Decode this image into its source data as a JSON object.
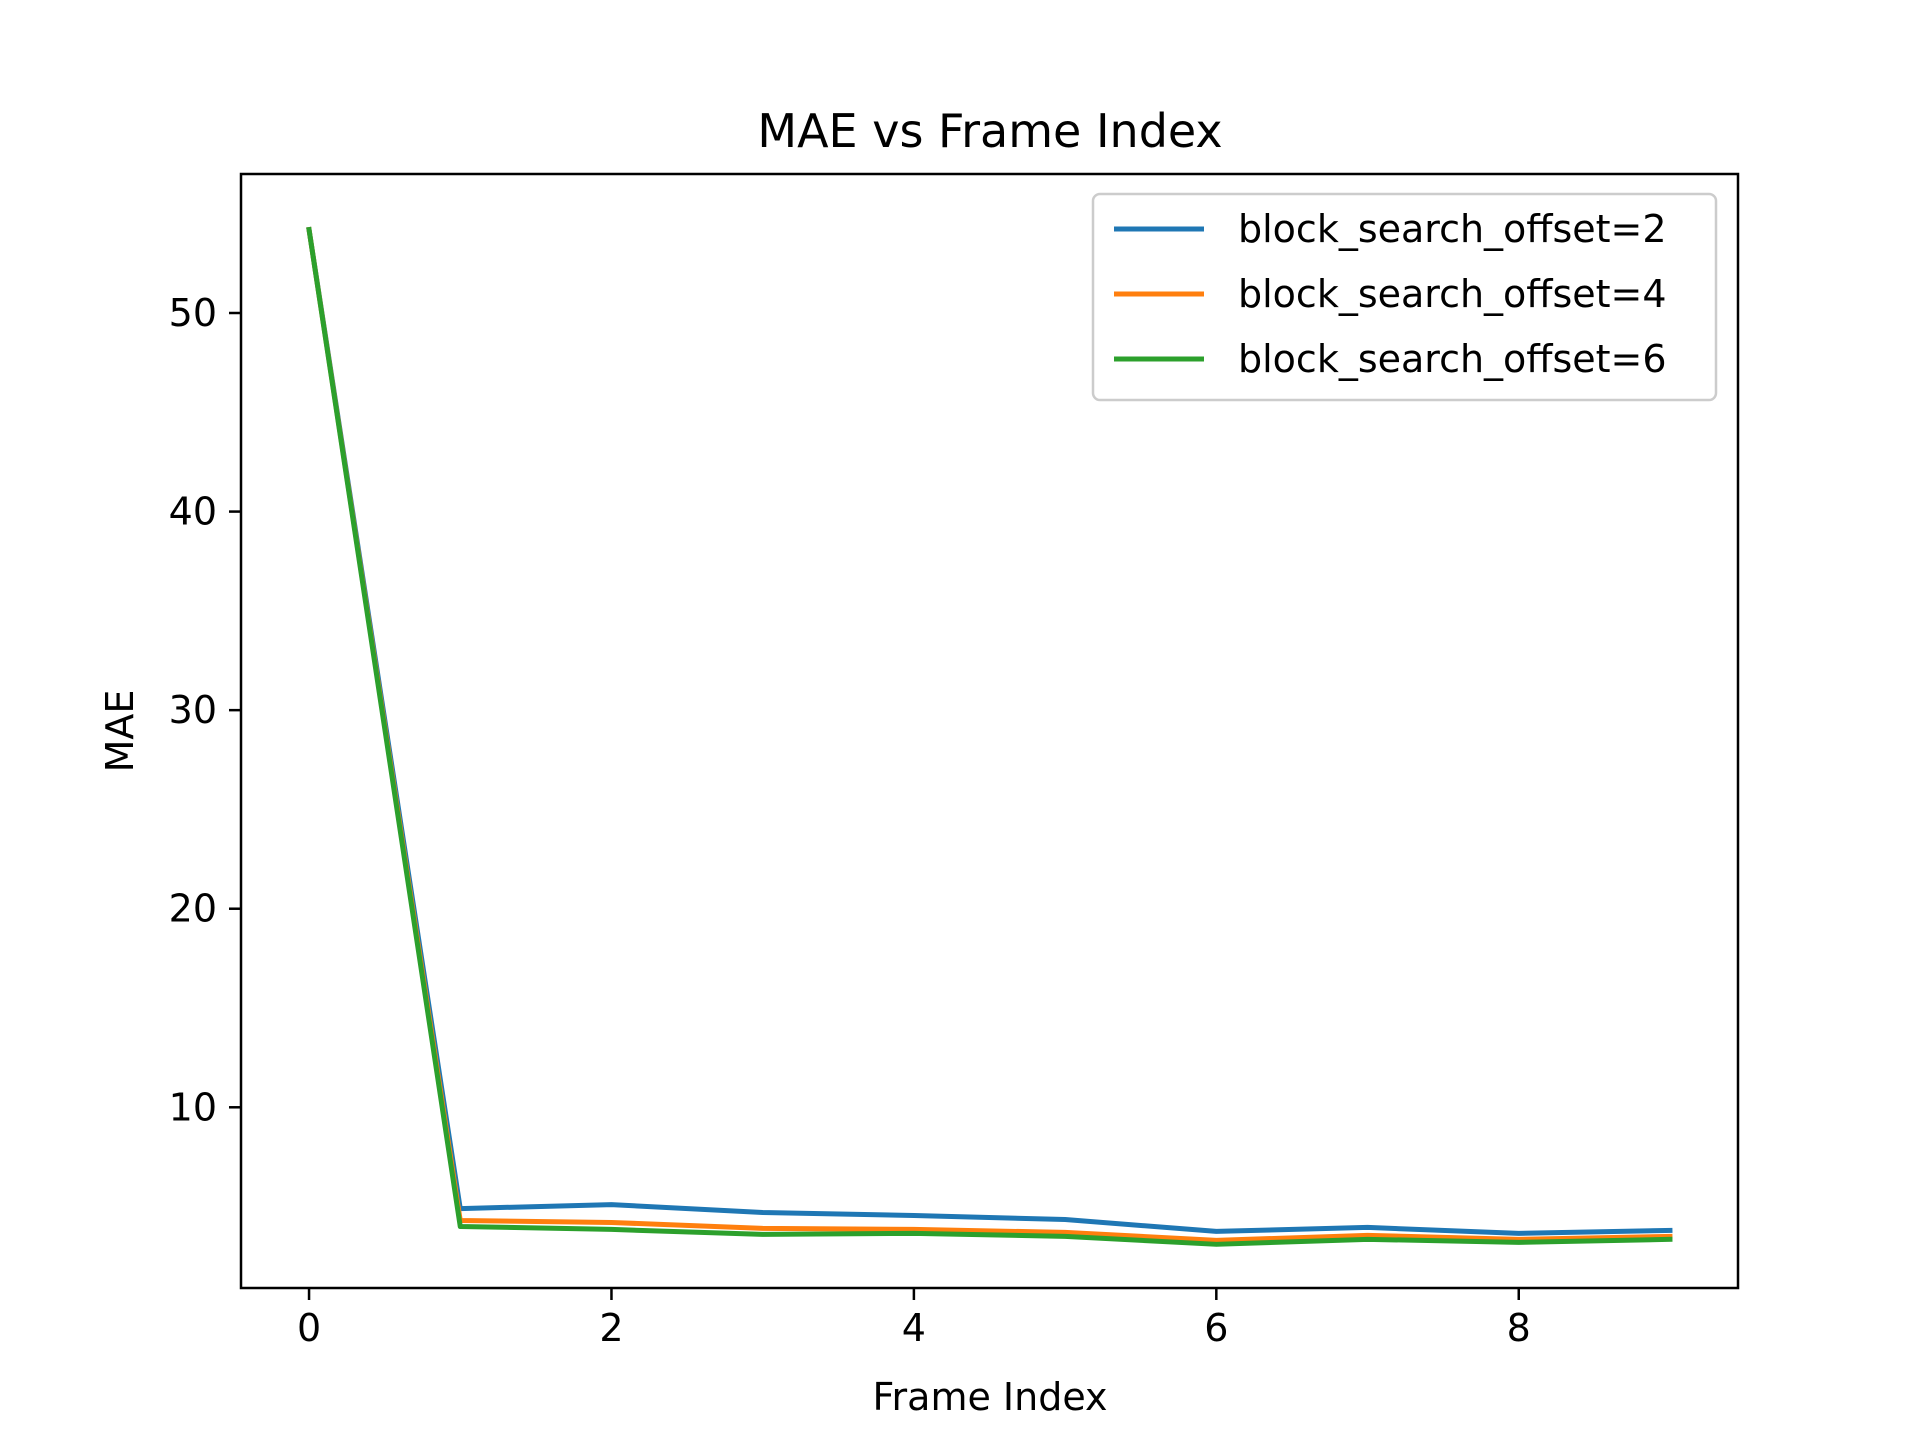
{
  "chart_data": {
    "type": "line",
    "title": "MAE vs Frame Index",
    "xlabel": "Frame Index",
    "ylabel": "MAE",
    "x": [
      0,
      1,
      2,
      3,
      4,
      5,
      6,
      7,
      8,
      9
    ],
    "xticks": [
      0,
      2,
      4,
      6,
      8
    ],
    "yticks": [
      10,
      20,
      30,
      40,
      50
    ],
    "xlim": [
      -0.45,
      9.45
    ],
    "ylim": [
      0.9,
      57.0
    ],
    "grid": false,
    "legend_position": "top-right",
    "series": [
      {
        "name": "block_search_offset=2",
        "color": "#1f77b4",
        "values": [
          54.2,
          4.9,
          5.1,
          4.7,
          4.55,
          4.35,
          3.75,
          3.95,
          3.65,
          3.8
        ]
      },
      {
        "name": "block_search_offset=4",
        "color": "#ff7f0e",
        "values": [
          54.2,
          4.3,
          4.2,
          3.9,
          3.85,
          3.7,
          3.3,
          3.55,
          3.35,
          3.5
        ]
      },
      {
        "name": "block_search_offset=6",
        "color": "#2ca02c",
        "values": [
          54.2,
          4.0,
          3.85,
          3.6,
          3.65,
          3.5,
          3.1,
          3.35,
          3.2,
          3.35
        ]
      }
    ]
  }
}
